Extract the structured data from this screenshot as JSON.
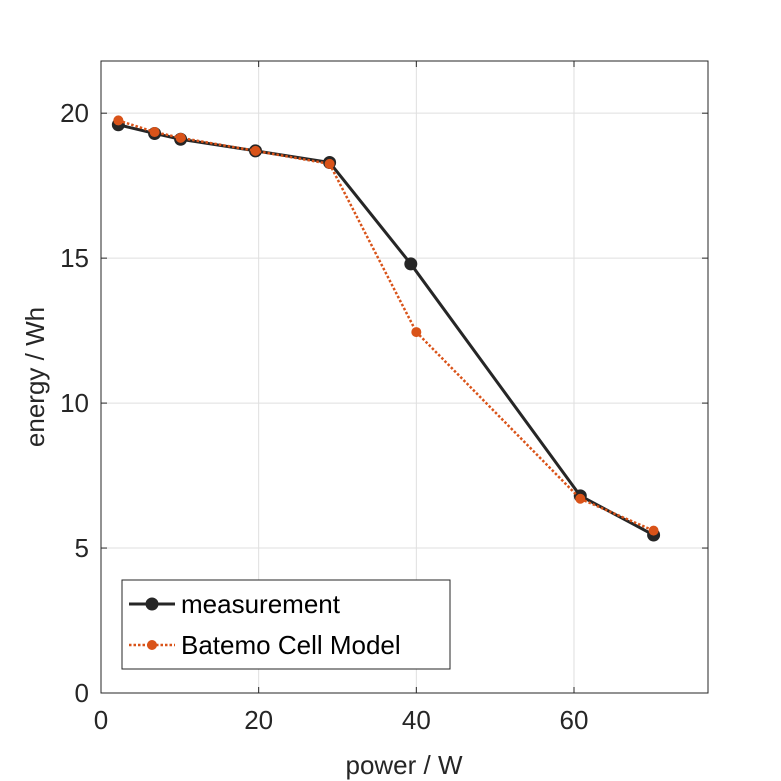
{
  "chart_data": {
    "type": "line",
    "title": "",
    "xlabel": "power / W",
    "ylabel": "energy / Wh",
    "xlim": [
      0,
      77
    ],
    "ylim": [
      0,
      21.8
    ],
    "xticks": [
      0,
      20,
      40,
      60
    ],
    "yticks": [
      0,
      5,
      10,
      15,
      20
    ],
    "xtick_labels": [
      "0",
      "20",
      "40",
      "60"
    ],
    "ytick_labels": [
      "0",
      "5",
      "10",
      "15",
      "20"
    ],
    "grid": true,
    "legend_position": "bottom-left",
    "series": [
      {
        "name": "measurement",
        "color": "#262626",
        "line_style": "solid",
        "marker": "circle",
        "x": [
          2.2,
          6.8,
          10.1,
          19.6,
          29.0,
          39.3,
          60.8,
          70.1
        ],
        "y": [
          19.6,
          19.3,
          19.1,
          18.7,
          18.3,
          14.8,
          6.8,
          5.45
        ]
      },
      {
        "name": "Batemo Cell Model",
        "color": "#D95319",
        "line_style": "dotted",
        "marker": "circle",
        "x": [
          2.2,
          6.8,
          10.1,
          19.6,
          29.0,
          40.0,
          60.8,
          70.1
        ],
        "y": [
          19.75,
          19.35,
          19.15,
          18.7,
          18.25,
          12.45,
          6.7,
          5.6
        ]
      }
    ]
  }
}
